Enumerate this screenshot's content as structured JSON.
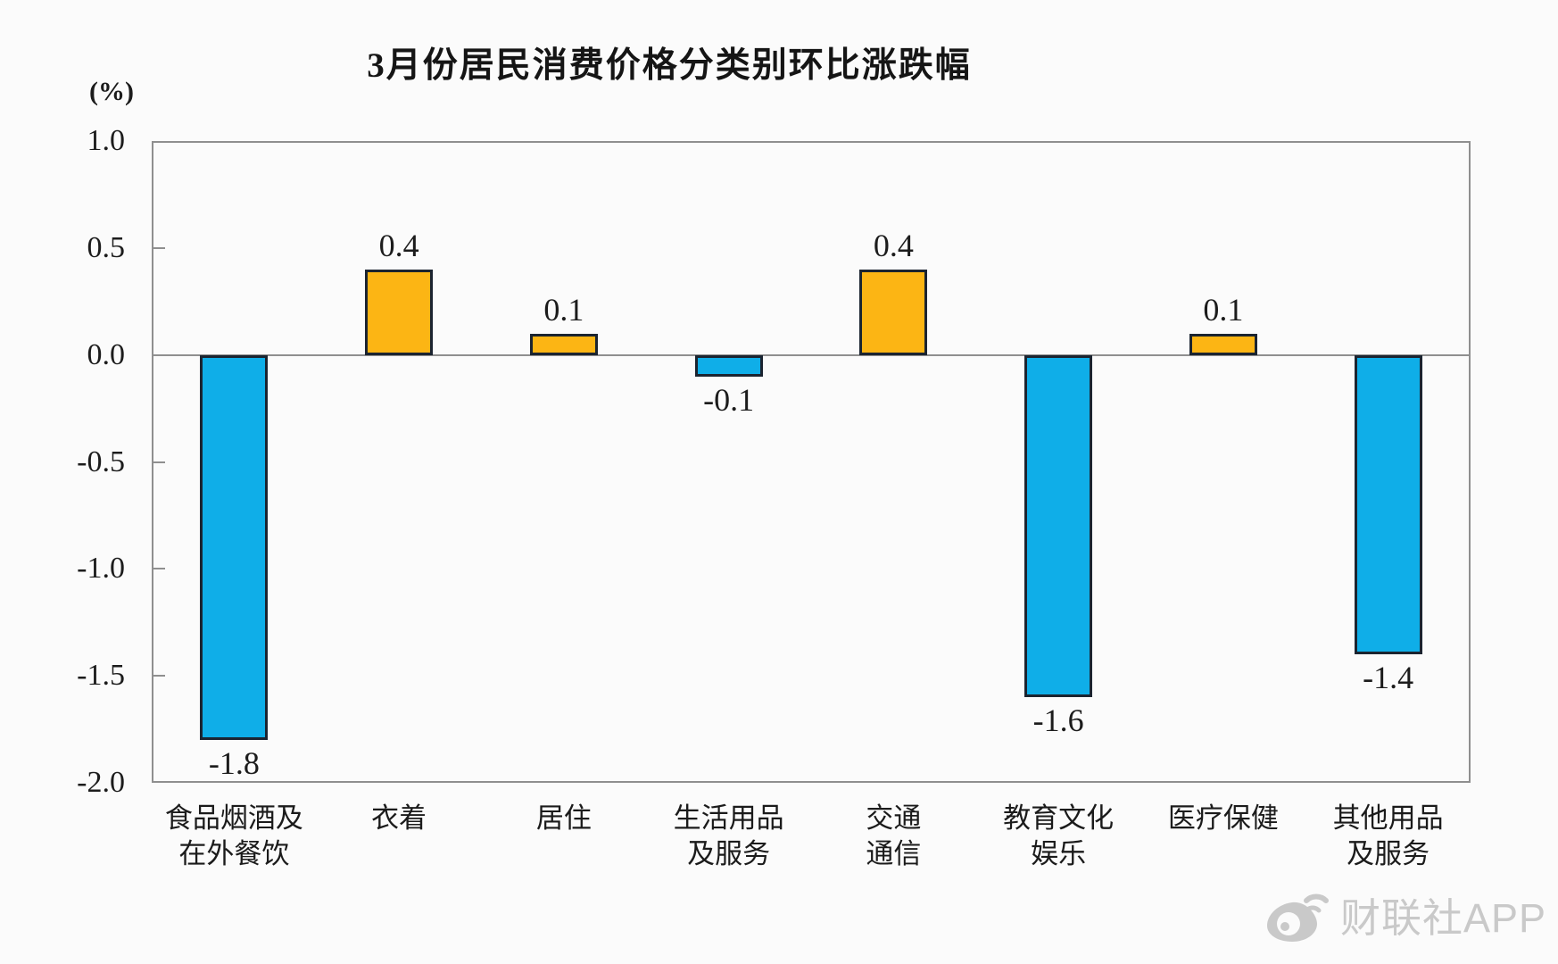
{
  "header": {
    "title": "3月份居民消费价格分类别环比涨跌幅"
  },
  "watermark": {
    "icon": "weibo-logo-icon",
    "text": "财联社APP",
    "color": "#c9c9c9"
  },
  "colors": {
    "positive_bar": "#FCB514",
    "negative_bar": "#0FAEE8",
    "bar_border": "#1b2430",
    "axis_line": "#8f8f8f",
    "text": "#1c1c1c"
  },
  "chart_data": {
    "type": "bar",
    "title": "3月份居民消费价格分类别环比涨跌幅",
    "unit_label": "(%)",
    "categories": [
      "食品烟酒及在外餐饮",
      "衣着",
      "居住",
      "生活用品及服务",
      "交通通信",
      "教育文化娱乐",
      "医疗保健",
      "其他用品及服务"
    ],
    "category_lines": [
      [
        "食品烟酒及",
        "在外餐饮"
      ],
      [
        "衣着"
      ],
      [
        "居住"
      ],
      [
        "生活用品",
        "及服务"
      ],
      [
        "交通",
        "通信"
      ],
      [
        "教育文化",
        "娱乐"
      ],
      [
        "医疗保健"
      ],
      [
        "其他用品",
        "及服务"
      ]
    ],
    "values": [
      -1.8,
      0.4,
      0.1,
      -0.1,
      0.4,
      -1.6,
      0.1,
      -1.4
    ],
    "value_labels": [
      "-1.8",
      "0.4",
      "0.1",
      "-0.1",
      "0.4",
      "-1.6",
      "0.1",
      "-1.4"
    ],
    "ylim": [
      -2.0,
      1.0
    ],
    "yticks": [
      1.0,
      0.5,
      0.0,
      -0.5,
      -1.0,
      -1.5,
      -2.0
    ],
    "ytick_labels": [
      "1.0",
      "0.5",
      "0.0",
      "-0.5",
      "-1.0",
      "-1.5",
      "-2.0"
    ],
    "xlabel": "",
    "ylabel": "(%)",
    "grid": false,
    "legend": "none",
    "color_rule": "positive bars orange, negative bars blue"
  }
}
